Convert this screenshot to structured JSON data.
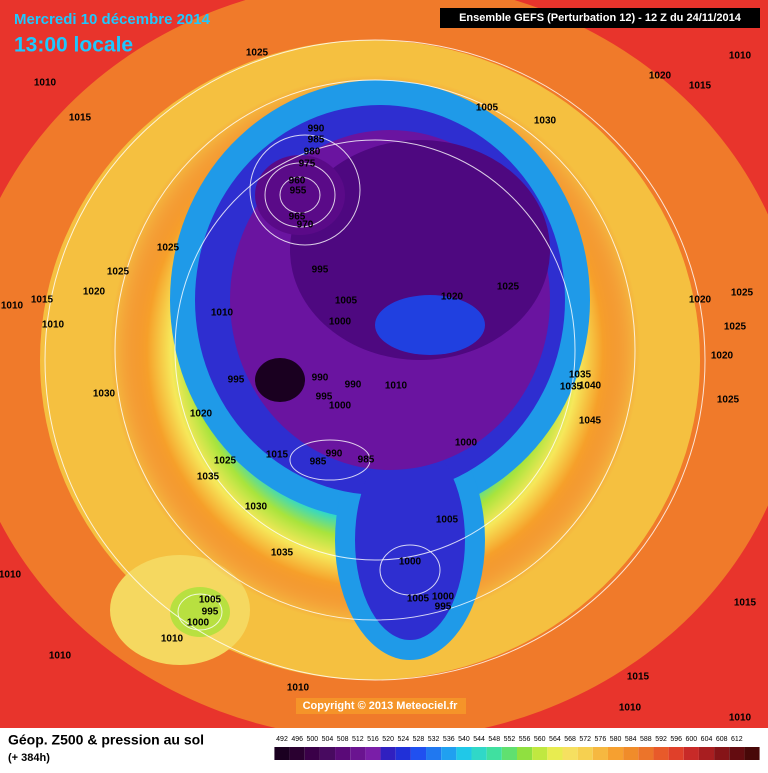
{
  "header": {
    "date": "Mercredi 10 décembre 2014",
    "time": "13:00 locale",
    "model": "Ensemble GEFS (Perturbation 12)  -  12 Z du 24/11/2014"
  },
  "pressure_labels": [
    1025,
    1010,
    1015,
    1005,
    1030,
    1020,
    1015,
    1010,
    990,
    985,
    980,
    975,
    960,
    955,
    965,
    970,
    1025,
    1025,
    995,
    1020,
    1015,
    1010,
    1005,
    1020,
    1025,
    1020,
    1025,
    1010,
    1010,
    1000,
    1025,
    1020,
    995,
    990,
    990,
    1010,
    1035,
    1040,
    1035,
    1030,
    995,
    1000,
    1025,
    1020,
    1045,
    1000,
    990,
    985,
    985,
    1015,
    1025,
    1035,
    1030,
    1005,
    1035,
    1000,
    1010,
    1005,
    1000,
    995,
    1005,
    995,
    1000,
    1010,
    1015,
    1010,
    1015,
    1010,
    1010,
    1010
  ],
  "copyright": "Copyright © 2013 Meteociel.fr",
  "footer": {
    "title": "Géop. Z500 & pression au sol",
    "lead": "(+ 384h)"
  },
  "colorbar": [
    492,
    496,
    500,
    504,
    508,
    512,
    516,
    520,
    524,
    528,
    532,
    536,
    540,
    544,
    548,
    552,
    556,
    560,
    564,
    568,
    572,
    576,
    580,
    584,
    588,
    592,
    596,
    600,
    604,
    608,
    612
  ]
}
